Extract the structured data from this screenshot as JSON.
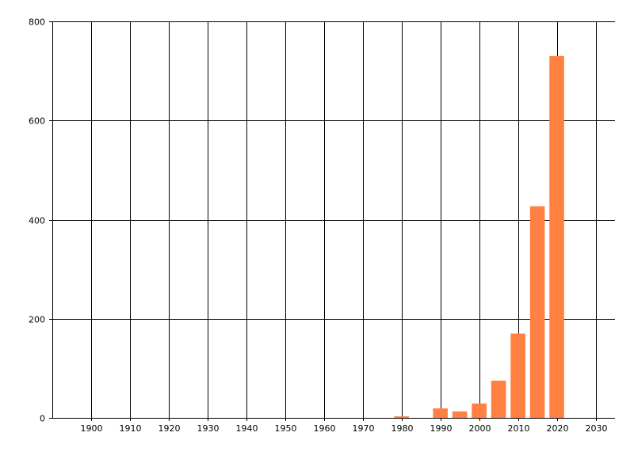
{
  "chart_data": {
    "type": "bar",
    "title": "",
    "xlabel": "",
    "ylabel": "",
    "xlim": [
      1890,
      2035
    ],
    "ylim": [
      0,
      800
    ],
    "xticks": [
      1900,
      1910,
      1920,
      1930,
      1940,
      1950,
      1960,
      1970,
      1980,
      1990,
      2000,
      2010,
      2020,
      2030
    ],
    "yticks": [
      0,
      200,
      400,
      600,
      800
    ],
    "grid": true,
    "bar_width_years": 4,
    "color": "#FF8040",
    "x": [
      1980,
      1990,
      1995,
      2000,
      2005,
      2010,
      2015,
      2020
    ],
    "values": [
      3,
      19,
      13,
      29,
      75,
      170,
      427,
      730
    ]
  }
}
